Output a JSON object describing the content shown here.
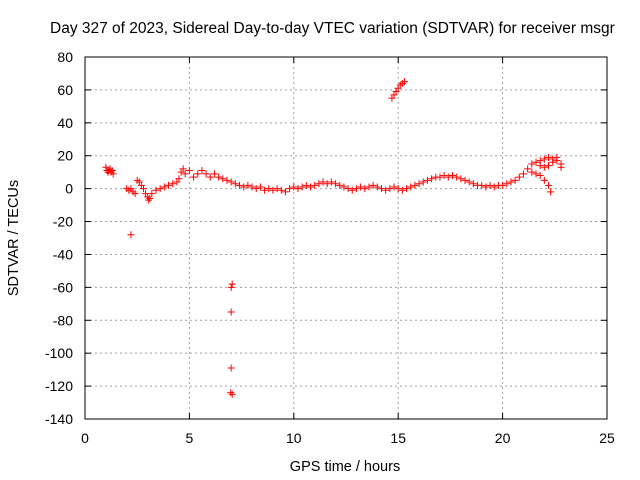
{
  "chart_data": {
    "type": "scatter",
    "title": "Day 327 of 2023, Sidereal Day-to-day VTEC variation (SDTVAR) for receiver msgr",
    "xlabel": "GPS time / hours",
    "ylabel": "SDTVAR / TECUs",
    "xlim": [
      0,
      25
    ],
    "ylim": [
      -140,
      80
    ],
    "xticks": [
      0,
      5,
      10,
      15,
      20,
      25
    ],
    "yticks": [
      -140,
      -120,
      -100,
      -80,
      -60,
      -40,
      -20,
      0,
      20,
      40,
      60,
      80
    ],
    "grid": true,
    "marker": "+",
    "colors": {
      "series": "#ff0000",
      "grid": "#a0a0a0",
      "axis": "#000000"
    },
    "series": [
      {
        "name": "SDTVAR",
        "points": [
          [
            1.0,
            13
          ],
          [
            1.05,
            11
          ],
          [
            1.1,
            10
          ],
          [
            1.15,
            11
          ],
          [
            1.2,
            12
          ],
          [
            1.25,
            10
          ],
          [
            1.3,
            11
          ],
          [
            1.35,
            9
          ],
          [
            2.0,
            0
          ],
          [
            2.1,
            -1
          ],
          [
            2.2,
            0
          ],
          [
            2.3,
            -2
          ],
          [
            2.4,
            -3
          ],
          [
            2.5,
            5
          ],
          [
            2.6,
            4
          ],
          [
            2.7,
            2
          ],
          [
            2.8,
            0
          ],
          [
            2.9,
            -3
          ],
          [
            3.0,
            -5
          ],
          [
            3.05,
            -7
          ],
          [
            3.1,
            -6
          ],
          [
            3.2,
            -3
          ],
          [
            3.4,
            -1
          ],
          [
            3.6,
            0
          ],
          [
            3.8,
            1
          ],
          [
            4.0,
            2
          ],
          [
            4.2,
            3
          ],
          [
            4.4,
            4
          ],
          [
            4.5,
            6
          ],
          [
            4.6,
            10
          ],
          [
            4.7,
            12
          ],
          [
            4.8,
            9
          ],
          [
            5.0,
            11
          ],
          [
            5.2,
            7
          ],
          [
            5.4,
            9
          ],
          [
            5.6,
            11
          ],
          [
            5.8,
            9
          ],
          [
            6.0,
            7
          ],
          [
            6.2,
            9
          ],
          [
            6.4,
            7
          ],
          [
            6.6,
            6
          ],
          [
            6.8,
            5
          ],
          [
            7.0,
            4
          ],
          [
            7.2,
            3
          ],
          [
            7.4,
            2
          ],
          [
            7.6,
            1
          ],
          [
            7.8,
            2
          ],
          [
            8.0,
            1
          ],
          [
            8.2,
            0
          ],
          [
            8.4,
            1
          ],
          [
            8.6,
            -1
          ],
          [
            8.8,
            0
          ],
          [
            9.0,
            -1
          ],
          [
            9.2,
            0
          ],
          [
            9.4,
            -1
          ],
          [
            9.6,
            -2
          ],
          [
            9.8,
            0
          ],
          [
            10.0,
            1
          ],
          [
            10.2,
            0
          ],
          [
            10.4,
            1
          ],
          [
            10.6,
            2
          ],
          [
            10.8,
            1
          ],
          [
            11.0,
            2
          ],
          [
            11.2,
            3
          ],
          [
            11.4,
            4
          ],
          [
            11.6,
            3
          ],
          [
            11.8,
            4
          ],
          [
            12.0,
            3
          ],
          [
            12.2,
            2
          ],
          [
            12.4,
            1
          ],
          [
            12.6,
            0
          ],
          [
            12.8,
            -1
          ],
          [
            13.0,
            0
          ],
          [
            13.2,
            1
          ],
          [
            13.4,
            0
          ],
          [
            13.6,
            1
          ],
          [
            13.8,
            2
          ],
          [
            14.0,
            1
          ],
          [
            14.2,
            0
          ],
          [
            14.4,
            -1
          ],
          [
            14.6,
            0
          ],
          [
            14.8,
            1
          ],
          [
            15.0,
            0
          ],
          [
            15.2,
            -1
          ],
          [
            15.4,
            0
          ],
          [
            15.6,
            1
          ],
          [
            15.8,
            2
          ],
          [
            16.0,
            3
          ],
          [
            16.2,
            4
          ],
          [
            16.4,
            5
          ],
          [
            16.6,
            6
          ],
          [
            16.8,
            7
          ],
          [
            17.0,
            7
          ],
          [
            17.2,
            8
          ],
          [
            17.4,
            7
          ],
          [
            17.6,
            8
          ],
          [
            17.8,
            7
          ],
          [
            18.0,
            6
          ],
          [
            18.2,
            5
          ],
          [
            18.4,
            4
          ],
          [
            18.6,
            3
          ],
          [
            18.8,
            2
          ],
          [
            19.0,
            2
          ],
          [
            19.2,
            1
          ],
          [
            19.4,
            2
          ],
          [
            19.6,
            1
          ],
          [
            19.8,
            2
          ],
          [
            20.0,
            2
          ],
          [
            20.2,
            3
          ],
          [
            20.4,
            4
          ],
          [
            20.6,
            5
          ],
          [
            20.8,
            7
          ],
          [
            21.0,
            9
          ],
          [
            21.2,
            12
          ],
          [
            21.4,
            15
          ],
          [
            21.6,
            16
          ],
          [
            21.8,
            17
          ],
          [
            22.0,
            18
          ],
          [
            22.2,
            19
          ],
          [
            22.4,
            18
          ],
          [
            22.6,
            17
          ],
          [
            22.8,
            15
          ],
          [
            21.4,
            10
          ],
          [
            21.6,
            9
          ],
          [
            21.8,
            8
          ],
          [
            22.0,
            5
          ],
          [
            22.2,
            2
          ],
          [
            22.3,
            -2
          ],
          [
            21.8,
            14
          ],
          [
            22.0,
            13
          ],
          [
            22.2,
            14
          ],
          [
            22.4,
            16
          ],
          [
            22.6,
            19
          ],
          [
            22.8,
            13
          ],
          [
            14.7,
            55
          ],
          [
            14.8,
            57
          ],
          [
            14.9,
            59
          ],
          [
            15.0,
            61
          ],
          [
            15.1,
            63
          ],
          [
            15.2,
            64
          ],
          [
            15.3,
            65
          ],
          [
            2.2,
            -28
          ],
          [
            7.05,
            -58
          ],
          [
            7.0,
            -60
          ],
          [
            7.0,
            -75
          ],
          [
            7.0,
            -109
          ],
          [
            6.98,
            -124
          ],
          [
            7.05,
            -125
          ]
        ]
      }
    ]
  }
}
